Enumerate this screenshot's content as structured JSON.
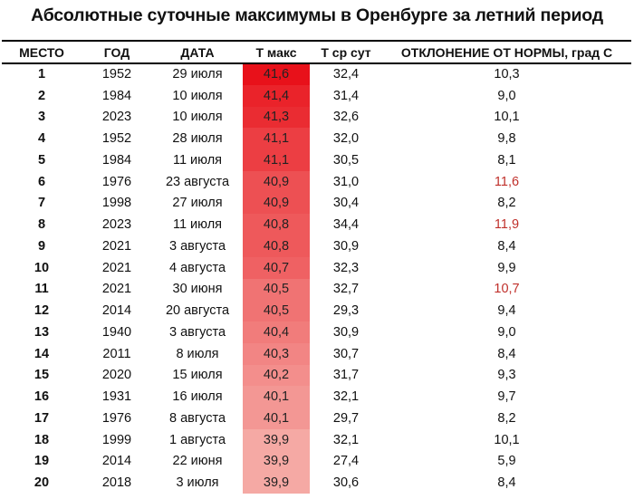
{
  "title": "Абсолютные суточные максимумы в Оренбурге за летний период",
  "columns": {
    "place": "МЕСТО",
    "year": "ГОД",
    "date": "ДАТА",
    "tmax": "Т макс",
    "tavg": "Т ср сут",
    "deviation": "ОТКЛОНЕНИЕ ОТ НОРМЫ, град С"
  },
  "colors": {
    "tmax_hot": "#e8111a",
    "tmax_cool": "#f5a9a4",
    "deviation_highlight": "#c0302b"
  },
  "rows": [
    {
      "place": "1",
      "year": "1952",
      "date": "29 июля",
      "tmax": "41,6",
      "tavg": "32,4",
      "deviation": "10,3",
      "highlight": false
    },
    {
      "place": "2",
      "year": "1984",
      "date": "10 июля",
      "tmax": "41,4",
      "tavg": "31,4",
      "deviation": "9,0",
      "highlight": false
    },
    {
      "place": "3",
      "year": "2023",
      "date": "10 июля",
      "tmax": "41,3",
      "tavg": "32,6",
      "deviation": "10,1",
      "highlight": false
    },
    {
      "place": "4",
      "year": "1952",
      "date": "28 июля",
      "tmax": "41,1",
      "tavg": "32,0",
      "deviation": "9,8",
      "highlight": false
    },
    {
      "place": "5",
      "year": "1984",
      "date": "11 июля",
      "tmax": "41,1",
      "tavg": "30,5",
      "deviation": "8,1",
      "highlight": false
    },
    {
      "place": "6",
      "year": "1976",
      "date": "23 августа",
      "tmax": "40,9",
      "tavg": "31,0",
      "deviation": "11,6",
      "highlight": true
    },
    {
      "place": "7",
      "year": "1998",
      "date": "27 июля",
      "tmax": "40,9",
      "tavg": "30,4",
      "deviation": "8,2",
      "highlight": false
    },
    {
      "place": "8",
      "year": "2023",
      "date": "11 июля",
      "tmax": "40,8",
      "tavg": "34,4",
      "deviation": "11,9",
      "highlight": true
    },
    {
      "place": "9",
      "year": "2021",
      "date": "3 августа",
      "tmax": "40,8",
      "tavg": "30,9",
      "deviation": "8,4",
      "highlight": false
    },
    {
      "place": "10",
      "year": "2021",
      "date": "4 августа",
      "tmax": "40,7",
      "tavg": "32,3",
      "deviation": "9,9",
      "highlight": false
    },
    {
      "place": "11",
      "year": "2021",
      "date": "30 июня",
      "tmax": "40,5",
      "tavg": "32,7",
      "deviation": "10,7",
      "highlight": true
    },
    {
      "place": "12",
      "year": "2014",
      "date": "20 августа",
      "tmax": "40,5",
      "tavg": "29,3",
      "deviation": "9,4",
      "highlight": false
    },
    {
      "place": "13",
      "year": "1940",
      "date": "3 августа",
      "tmax": "40,4",
      "tavg": "30,9",
      "deviation": "9,0",
      "highlight": false
    },
    {
      "place": "14",
      "year": "2011",
      "date": "8 июля",
      "tmax": "40,3",
      "tavg": "30,7",
      "deviation": "8,4",
      "highlight": false
    },
    {
      "place": "15",
      "year": "2020",
      "date": "15 июля",
      "tmax": "40,2",
      "tavg": "31,7",
      "deviation": "9,3",
      "highlight": false
    },
    {
      "place": "16",
      "year": "1931",
      "date": "16 июля",
      "tmax": "40,1",
      "tavg": "32,1",
      "deviation": "9,7",
      "highlight": false
    },
    {
      "place": "17",
      "year": "1976",
      "date": "8 августа",
      "tmax": "40,1",
      "tavg": "29,7",
      "deviation": "8,2",
      "highlight": false
    },
    {
      "place": "18",
      "year": "1999",
      "date": "1 августа",
      "tmax": "39,9",
      "tavg": "32,1",
      "deviation": "10,1",
      "highlight": false
    },
    {
      "place": "19",
      "year": "2014",
      "date": "22 июня",
      "tmax": "39,9",
      "tavg": "27,4",
      "deviation": "5,9",
      "highlight": false
    },
    {
      "place": "20",
      "year": "2018",
      "date": "3 июля",
      "tmax": "39,9",
      "tavg": "30,6",
      "deviation": "8,4",
      "highlight": false
    }
  ]
}
